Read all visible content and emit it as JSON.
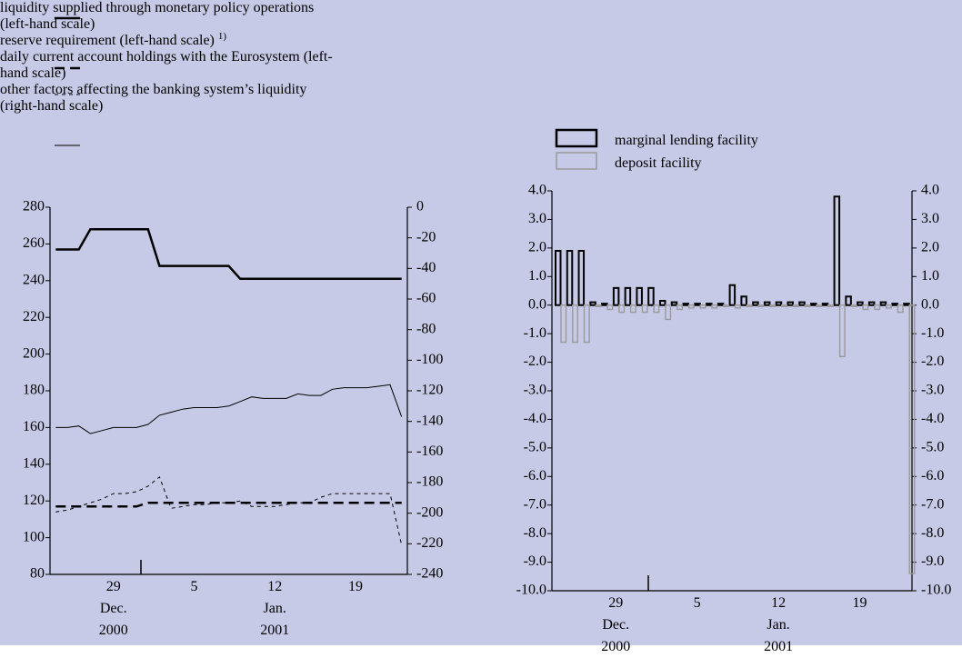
{
  "chart_data": [
    {
      "type": "line",
      "categories": [
        null,
        null,
        null,
        null,
        null,
        "29\nDec.\n2000",
        null,
        null,
        null,
        null,
        null,
        null,
        "5",
        null,
        null,
        null,
        null,
        null,
        null,
        "12\nJan.\n2001",
        null,
        null,
        null,
        null,
        null,
        null,
        "19",
        null,
        null,
        null,
        null
      ],
      "ylim": [
        80,
        280
      ],
      "yticks": [
        80,
        100,
        120,
        140,
        160,
        180,
        200,
        220,
        240,
        260,
        280
      ],
      "y2lim": [
        -240,
        0
      ],
      "y2ticks": [
        -240,
        -220,
        -200,
        -180,
        -160,
        -140,
        -120,
        -100,
        -80,
        -60,
        -40,
        -20,
        0
      ],
      "series": [
        {
          "name": "liquidity supplied through monetary policy operations (left-hand scale)",
          "color": "#000000",
          "line_style": "thick",
          "values": [
            257,
            257,
            257,
            268,
            268,
            268,
            268,
            268,
            268,
            248,
            248,
            248,
            248,
            248,
            248,
            248,
            241,
            241,
            241,
            241,
            241,
            241,
            241,
            241,
            241,
            241,
            241,
            241,
            241,
            241,
            241
          ]
        },
        {
          "name": "reserve requirement (left-hand scale)",
          "note": "1)",
          "color": "#000000",
          "line_style": "thick-dashed",
          "values": [
            117,
            117,
            117,
            117,
            117,
            117,
            117,
            117,
            119,
            119,
            119,
            119,
            119,
            119,
            119,
            119,
            119,
            119,
            119,
            119,
            119,
            119,
            119,
            119,
            119,
            119,
            119,
            119,
            119,
            119,
            119
          ]
        },
        {
          "name": "daily current account holdings with the Eurosystem (left-hand scale)",
          "color": "#000000",
          "line_style": "thin-dashed",
          "values": [
            114,
            115,
            117,
            119,
            121,
            124,
            124,
            125,
            128,
            133,
            116,
            117,
            118,
            118,
            119,
            119,
            120,
            117,
            117,
            117,
            118,
            119,
            119,
            122,
            124,
            124,
            124,
            124,
            124,
            124,
            96
          ]
        },
        {
          "name": "other factors affecting the banking system’s liquidity (right-hand scale)",
          "color": "#000000",
          "line_style": "thin",
          "axis": "y2",
          "values": [
            -144,
            -144,
            -143,
            -148,
            -146,
            -144,
            -144,
            -144,
            -142,
            -136,
            -134,
            -132,
            -131,
            -131,
            -131,
            -130,
            -127,
            -124,
            -125,
            -125,
            -125,
            -122,
            -123,
            -123,
            -119,
            -118,
            -118,
            -118,
            -117,
            -116,
            -137
          ]
        }
      ]
    },
    {
      "type": "bar",
      "categories": [
        null,
        null,
        null,
        null,
        null,
        "29\nDec.\n2000",
        null,
        null,
        null,
        null,
        null,
        null,
        "5",
        null,
        null,
        null,
        null,
        null,
        null,
        "12\nJan.\n2001",
        null,
        null,
        null,
        null,
        null,
        null,
        "19",
        null,
        null,
        null,
        null
      ],
      "ylim": [
        -10,
        4
      ],
      "yticks": [
        {
          "value": -10,
          "label": "-10.0"
        },
        {
          "value": -9,
          "label": "-9.0"
        },
        {
          "value": -8,
          "label": "-8.0"
        },
        {
          "value": -7,
          "label": "-7.0"
        },
        {
          "value": -6,
          "label": "-6.0"
        },
        {
          "value": -5,
          "label": "-5.0"
        },
        {
          "value": -4,
          "label": "-4.0"
        },
        {
          "value": -3,
          "label": "-3.0"
        },
        {
          "value": -2,
          "label": "-2.0"
        },
        {
          "value": -1,
          "label": "-1.0"
        },
        {
          "value": 0,
          "label": "0.0"
        },
        {
          "value": 1,
          "label": "1.0"
        },
        {
          "value": 2,
          "label": "2.0"
        },
        {
          "value": 3,
          "label": "3.0"
        },
        {
          "value": 4,
          "label": "4.0"
        }
      ],
      "y2lim": [
        -10,
        4
      ],
      "y2ticks": [
        {
          "value": -10,
          "label": "-10.0"
        },
        {
          "value": -9,
          "label": "-9.0"
        },
        {
          "value": -8,
          "label": "-8.0"
        },
        {
          "value": -7,
          "label": "-7.0"
        },
        {
          "value": -6,
          "label": "-6.0"
        },
        {
          "value": -5,
          "label": "-5.0"
        },
        {
          "value": -4,
          "label": "-4.0"
        },
        {
          "value": -3,
          "label": "-3.0"
        },
        {
          "value": -2,
          "label": "-2.0"
        },
        {
          "value": -1,
          "label": "-1.0"
        },
        {
          "value": 0,
          "label": "0.0"
        },
        {
          "value": 1,
          "label": "1.0"
        },
        {
          "value": 2,
          "label": "2.0"
        },
        {
          "value": 3,
          "label": "3.0"
        },
        {
          "value": 4,
          "label": "4.0"
        }
      ],
      "series": [
        {
          "name": "marginal lending facility",
          "color": "#000000",
          "values": [
            1.9,
            1.9,
            1.9,
            0.1,
            0.05,
            0.6,
            0.6,
            0.6,
            0.6,
            0.15,
            0.1,
            0.05,
            0.05,
            0.05,
            0.05,
            0.7,
            0.3,
            0.1,
            0.1,
            0.1,
            0.1,
            0.1,
            0.05,
            0.05,
            3.8,
            0.3,
            0.1,
            0.1,
            0.1,
            0.05,
            0.05
          ]
        },
        {
          "name": "deposit facility",
          "color": "#9a9a9a",
          "values": [
            -1.3,
            -1.3,
            -1.3,
            -0.05,
            -0.15,
            -0.25,
            -0.25,
            -0.25,
            -0.25,
            -0.5,
            -0.15,
            -0.1,
            -0.1,
            -0.1,
            -0.05,
            -0.1,
            -0.05,
            -0.05,
            -0.05,
            -0.05,
            -0.05,
            -0.05,
            -0.05,
            -0.05,
            -1.8,
            -0.05,
            -0.15,
            -0.15,
            -0.1,
            -0.25,
            -9.4
          ]
        }
      ]
    }
  ]
}
